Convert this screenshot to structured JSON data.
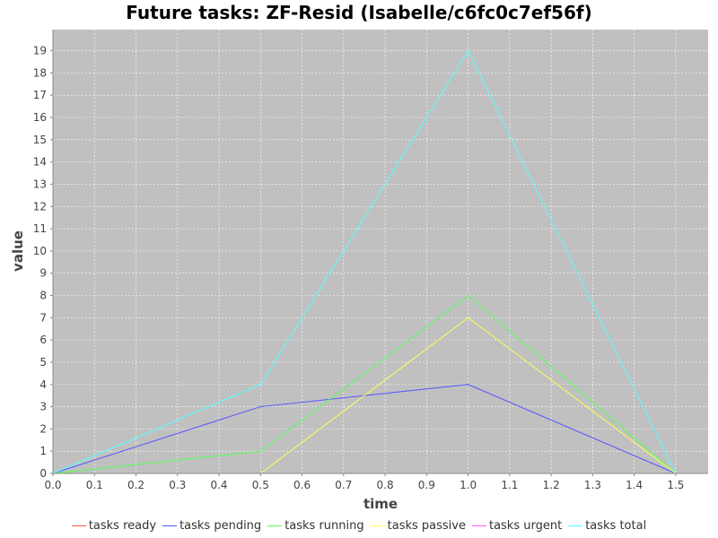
{
  "chart_data": {
    "type": "line",
    "title": "Future tasks: ZF-Resid (Isabelle/c6fc0c7ef56f)",
    "xlabel": "time",
    "ylabel": "value",
    "xlim": [
      0,
      1.578
    ],
    "ylim": [
      0,
      19.95
    ],
    "xticks": [
      "0.0",
      "0.1",
      "0.2",
      "0.3",
      "0.4",
      "0.5",
      "0.6",
      "0.7",
      "0.8",
      "0.9",
      "1.0",
      "1.1",
      "1.2",
      "1.3",
      "1.4",
      "1.5"
    ],
    "yticks": [
      "0",
      "1",
      "2",
      "3",
      "4",
      "5",
      "6",
      "7",
      "8",
      "9",
      "10",
      "11",
      "12",
      "13",
      "14",
      "15",
      "16",
      "17",
      "18",
      "19"
    ],
    "grid": true,
    "legend_position": "bottom",
    "background": "#c0c0c0",
    "series": [
      {
        "name": "tasks ready",
        "color": "#ff5555",
        "x": [
          0,
          0.5,
          1.0,
          1.5
        ],
        "y": [
          0,
          0,
          0,
          0
        ]
      },
      {
        "name": "tasks pending",
        "color": "#5555ff",
        "x": [
          0,
          0.5,
          1.0,
          1.5
        ],
        "y": [
          0,
          3,
          4,
          0
        ]
      },
      {
        "name": "tasks running",
        "color": "#55ff55",
        "x": [
          0,
          0.5,
          1.0,
          1.5
        ],
        "y": [
          0,
          1,
          8,
          0
        ]
      },
      {
        "name": "tasks passive",
        "color": "#ffff55",
        "x": [
          0.5,
          1.0,
          1.5
        ],
        "y": [
          0,
          7,
          0
        ]
      },
      {
        "name": "tasks urgent",
        "color": "#ff55ff",
        "x": [
          0,
          0.5,
          1.0,
          1.5
        ],
        "y": [
          0,
          0,
          0,
          0
        ]
      },
      {
        "name": "tasks total",
        "color": "#55ffff",
        "x": [
          0,
          0.5,
          1.0,
          1.5
        ],
        "y": [
          0,
          4,
          19,
          0
        ]
      }
    ]
  }
}
